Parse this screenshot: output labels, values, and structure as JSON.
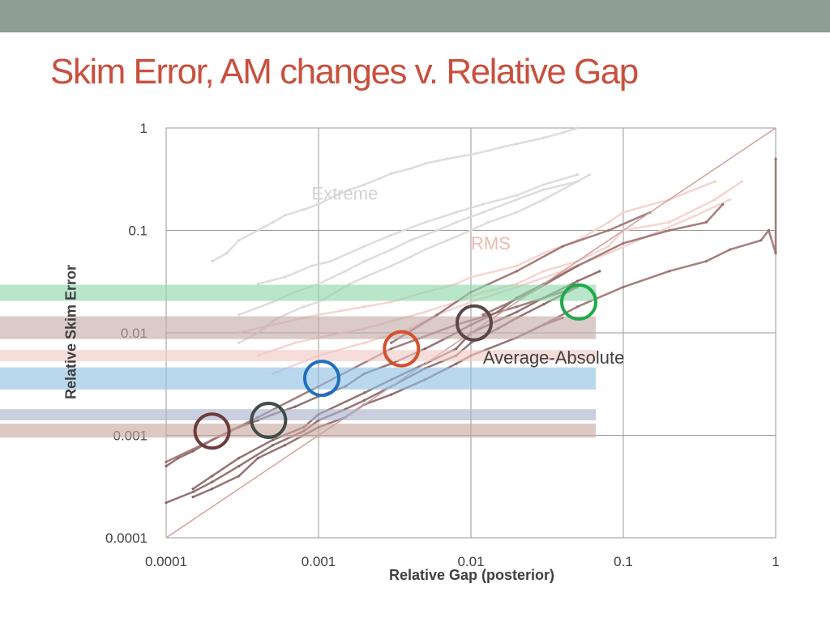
{
  "slide": {
    "title": "Skim Error, AM changes v. Relative Gap",
    "colors": {
      "header_bar": "#8f9e94",
      "title": "#c9503e"
    }
  },
  "chart_data": {
    "type": "scatter",
    "title": "",
    "xlabel": "Relative Gap (posterior)",
    "ylabel": "Relative Skim Error",
    "xscale": "log",
    "yscale": "log",
    "xlim": [
      0.0001,
      1
    ],
    "ylim": [
      0.0001,
      1
    ],
    "x_ticks": [
      0.0001,
      0.001,
      0.01,
      0.1,
      1
    ],
    "y_ticks": [
      0.0001,
      0.001,
      0.01,
      0.1,
      1
    ],
    "x_tick_labels": [
      "0.0001",
      "0.001",
      "0.01",
      "0.1",
      "1"
    ],
    "y_tick_labels": [
      "0.0001",
      "0.001",
      "0.01",
      "0.1",
      "1"
    ],
    "grid": true,
    "reference_line": {
      "from": [
        0.0001,
        0.0001
      ],
      "to": [
        1,
        1
      ],
      "color": "#d4a09a"
    },
    "annotations": [
      {
        "text": "Extreme",
        "x": 0.0009,
        "y": 0.2,
        "color": "#d3d3d3"
      },
      {
        "text": "RMS",
        "x": 0.01,
        "y": 0.065,
        "color": "#f0b8b0"
      },
      {
        "text": "Average-Absolute",
        "x": 0.012,
        "y": 0.005,
        "color": "#404040"
      }
    ],
    "series": [
      {
        "color": "#d9d9d9",
        "points": [
          [
            0.0002,
            0.05
          ],
          [
            0.00025,
            0.06
          ],
          [
            0.0003,
            0.08
          ],
          [
            0.0004,
            0.1
          ],
          [
            0.0005,
            0.12
          ],
          [
            0.0006,
            0.14
          ],
          [
            0.0008,
            0.16
          ],
          [
            0.001,
            0.18
          ],
          [
            0.0013,
            0.22
          ],
          [
            0.0016,
            0.25
          ],
          [
            0.002,
            0.28
          ],
          [
            0.0025,
            0.32
          ],
          [
            0.003,
            0.36
          ],
          [
            0.004,
            0.4
          ],
          [
            0.005,
            0.45
          ],
          [
            0.007,
            0.5
          ],
          [
            0.01,
            0.55
          ],
          [
            0.013,
            0.6
          ],
          [
            0.016,
            0.65
          ],
          [
            0.02,
            0.7
          ],
          [
            0.03,
            0.8
          ],
          [
            0.04,
            0.9
          ],
          [
            0.05,
            1.0
          ]
        ]
      },
      {
        "color": "#d9d9d9",
        "points": [
          [
            0.0003,
            0.008
          ],
          [
            0.0004,
            0.01
          ],
          [
            0.0005,
            0.013
          ],
          [
            0.0006,
            0.015
          ],
          [
            0.0008,
            0.018
          ],
          [
            0.001,
            0.02
          ],
          [
            0.0013,
            0.025
          ],
          [
            0.0016,
            0.03
          ],
          [
            0.002,
            0.035
          ],
          [
            0.003,
            0.045
          ],
          [
            0.004,
            0.055
          ],
          [
            0.005,
            0.065
          ],
          [
            0.007,
            0.08
          ],
          [
            0.01,
            0.1
          ],
          [
            0.013,
            0.12
          ],
          [
            0.02,
            0.15
          ],
          [
            0.03,
            0.2
          ],
          [
            0.05,
            0.3
          ]
        ]
      },
      {
        "color": "#d9d9d9",
        "points": [
          [
            0.0003,
            0.015
          ],
          [
            0.0005,
            0.02
          ],
          [
            0.0007,
            0.025
          ],
          [
            0.001,
            0.03
          ],
          [
            0.0015,
            0.04
          ],
          [
            0.002,
            0.05
          ],
          [
            0.003,
            0.065
          ],
          [
            0.004,
            0.08
          ],
          [
            0.006,
            0.1
          ],
          [
            0.008,
            0.12
          ],
          [
            0.012,
            0.15
          ],
          [
            0.02,
            0.2
          ],
          [
            0.03,
            0.25
          ],
          [
            0.05,
            0.3
          ],
          [
            0.06,
            0.35
          ]
        ]
      },
      {
        "color": "#d9d9d9",
        "points": [
          [
            0.0004,
            0.03
          ],
          [
            0.0006,
            0.035
          ],
          [
            0.0009,
            0.045
          ],
          [
            0.0012,
            0.05
          ],
          [
            0.002,
            0.07
          ],
          [
            0.003,
            0.09
          ],
          [
            0.005,
            0.12
          ],
          [
            0.008,
            0.15
          ],
          [
            0.012,
            0.18
          ],
          [
            0.02,
            0.22
          ],
          [
            0.03,
            0.28
          ],
          [
            0.05,
            0.35
          ]
        ]
      },
      {
        "color": "#f4d0cc",
        "points": [
          [
            0.0003,
            0.01
          ],
          [
            0.0005,
            0.012
          ],
          [
            0.0008,
            0.014
          ],
          [
            0.001,
            0.015
          ],
          [
            0.002,
            0.018
          ],
          [
            0.003,
            0.02
          ],
          [
            0.005,
            0.025
          ],
          [
            0.008,
            0.03
          ],
          [
            0.01,
            0.035
          ],
          [
            0.02,
            0.045
          ],
          [
            0.03,
            0.06
          ],
          [
            0.05,
            0.08
          ],
          [
            0.08,
            0.12
          ],
          [
            0.1,
            0.15
          ],
          [
            0.2,
            0.2
          ],
          [
            0.4,
            0.3
          ]
        ]
      },
      {
        "color": "#f4d0cc",
        "points": [
          [
            0.0004,
            0.006
          ],
          [
            0.0007,
            0.008
          ],
          [
            0.001,
            0.009
          ],
          [
            0.002,
            0.011
          ],
          [
            0.003,
            0.013
          ],
          [
            0.005,
            0.016
          ],
          [
            0.008,
            0.02
          ],
          [
            0.012,
            0.025
          ],
          [
            0.02,
            0.03
          ],
          [
            0.03,
            0.04
          ],
          [
            0.05,
            0.05
          ],
          [
            0.08,
            0.07
          ],
          [
            0.1,
            0.1
          ],
          [
            0.2,
            0.12
          ],
          [
            0.4,
            0.2
          ],
          [
            0.6,
            0.3
          ]
        ]
      },
      {
        "color": "#f4d0cc",
        "points": [
          [
            0.0005,
            0.004
          ],
          [
            0.001,
            0.006
          ],
          [
            0.002,
            0.008
          ],
          [
            0.004,
            0.011
          ],
          [
            0.006,
            0.015
          ],
          [
            0.01,
            0.02
          ],
          [
            0.02,
            0.028
          ],
          [
            0.04,
            0.04
          ],
          [
            0.08,
            0.06
          ],
          [
            0.15,
            0.09
          ],
          [
            0.3,
            0.14
          ],
          [
            0.5,
            0.2
          ]
        ]
      },
      {
        "color": "#8b6565",
        "points": [
          [
            0.0001,
            0.0005
          ],
          [
            0.00012,
            0.0006
          ],
          [
            0.00015,
            0.0007
          ],
          [
            0.0002,
            0.0009
          ],
          [
            0.0003,
            0.0012
          ],
          [
            0.0004,
            0.0014
          ],
          [
            0.0005,
            0.0016
          ],
          [
            0.0007,
            0.0019
          ],
          [
            0.001,
            0.0024
          ],
          [
            0.0015,
            0.003
          ],
          [
            0.002,
            0.004
          ],
          [
            0.003,
            0.005
          ],
          [
            0.005,
            0.007
          ],
          [
            0.007,
            0.009
          ],
          [
            0.01,
            0.012
          ],
          [
            0.015,
            0.016
          ],
          [
            0.02,
            0.022
          ],
          [
            0.03,
            0.03
          ],
          [
            0.05,
            0.045
          ]
        ]
      },
      {
        "color": "#8b6565",
        "points": [
          [
            0.0001,
            0.00022
          ],
          [
            0.00015,
            0.00028
          ],
          [
            0.0002,
            0.00035
          ],
          [
            0.0003,
            0.0005
          ],
          [
            0.0005,
            0.0008
          ],
          [
            0.0008,
            0.0011
          ],
          [
            0.001,
            0.0014
          ],
          [
            0.0015,
            0.0018
          ],
          [
            0.002,
            0.0022
          ],
          [
            0.003,
            0.003
          ],
          [
            0.005,
            0.0045
          ],
          [
            0.008,
            0.006
          ],
          [
            0.01,
            0.008
          ],
          [
            0.015,
            0.011
          ],
          [
            0.02,
            0.014
          ],
          [
            0.03,
            0.019
          ],
          [
            0.05,
            0.028
          ]
        ]
      },
      {
        "color": "#8b6565",
        "points": [
          [
            0.00015,
            0.0003
          ],
          [
            0.0002,
            0.0004
          ],
          [
            0.0003,
            0.0006
          ],
          [
            0.0005,
            0.0009
          ],
          [
            0.0008,
            0.0012
          ],
          [
            0.001,
            0.0016
          ],
          [
            0.002,
            0.0026
          ],
          [
            0.003,
            0.0035
          ],
          [
            0.005,
            0.005
          ],
          [
            0.008,
            0.007
          ],
          [
            0.01,
            0.01
          ],
          [
            0.02,
            0.016
          ],
          [
            0.03,
            0.022
          ],
          [
            0.05,
            0.032
          ],
          [
            0.07,
            0.04
          ]
        ]
      },
      {
        "color": "#8b6565",
        "points": [
          [
            0.00015,
            0.00025
          ],
          [
            0.0002,
            0.0003
          ],
          [
            0.0003,
            0.0004
          ],
          [
            0.0004,
            0.0006
          ],
          [
            0.0006,
            0.0008
          ],
          [
            0.001,
            0.0012
          ],
          [
            0.0015,
            0.0015
          ],
          [
            0.002,
            0.002
          ],
          [
            0.003,
            0.0025
          ],
          [
            0.005,
            0.0035
          ],
          [
            0.008,
            0.005
          ],
          [
            0.01,
            0.006
          ],
          [
            0.02,
            0.009
          ],
          [
            0.03,
            0.012
          ],
          [
            0.04,
            0.014
          ]
        ]
      },
      {
        "color": "#9b7070",
        "points": [
          [
            0.003,
            0.008
          ],
          [
            0.006,
            0.015
          ],
          [
            0.01,
            0.025
          ],
          [
            0.02,
            0.04
          ],
          [
            0.04,
            0.07
          ],
          [
            0.08,
            0.1
          ],
          [
            0.15,
            0.15
          ]
        ]
      },
      {
        "color": "#9b7070",
        "points": [
          [
            0.012,
            0.015
          ],
          [
            0.025,
            0.025
          ],
          [
            0.05,
            0.045
          ],
          [
            0.1,
            0.075
          ],
          [
            0.2,
            0.1
          ],
          [
            0.35,
            0.12
          ],
          [
            0.45,
            0.18
          ]
        ]
      },
      {
        "color": "#9b7070",
        "points": [
          [
            0.03,
            0.012
          ],
          [
            0.05,
            0.018
          ],
          [
            0.1,
            0.028
          ],
          [
            0.2,
            0.04
          ],
          [
            0.35,
            0.05
          ],
          [
            0.5,
            0.065
          ],
          [
            0.8,
            0.08
          ],
          [
            0.9,
            0.1
          ],
          [
            1.0,
            0.06
          ],
          [
            1.0,
            0.5
          ]
        ]
      },
      {
        "color": "#9b7070",
        "points": [
          [
            0.0001,
            0.00055
          ],
          [
            0.0002,
            0.0009
          ],
          [
            0.0004,
            0.0015
          ],
          [
            0.001,
            0.003
          ],
          [
            0.003,
            0.007
          ],
          [
            0.008,
            0.012
          ],
          [
            0.02,
            0.018
          ],
          [
            0.05,
            0.028
          ]
        ]
      }
    ],
    "highlight_bands": [
      {
        "y_range": [
          0.0205,
          0.0295
        ],
        "color": "#8ed7a8"
      },
      {
        "y_range": [
          0.0087,
          0.0145
        ],
        "color": "#c4aaa6"
      },
      {
        "y_range": [
          0.0053,
          0.0068
        ],
        "color": "#f2c8c2"
      },
      {
        "y_range": [
          0.0028,
          0.0046
        ],
        "color": "#8ec0e3"
      },
      {
        "y_range": [
          0.0014,
          0.0018
        ],
        "color": "#a8b2cc"
      },
      {
        "y_range": [
          0.00095,
          0.0013
        ],
        "color": "#c8a6a0"
      }
    ],
    "highlight_markers": [
      {
        "x": 0.0002,
        "y": 0.0011,
        "color": "#6e3b3b"
      },
      {
        "x": 0.00047,
        "y": 0.0014,
        "color": "#3f4d45"
      },
      {
        "x": 0.00105,
        "y": 0.0036,
        "color": "#1f6fbf"
      },
      {
        "x": 0.0035,
        "y": 0.007,
        "color": "#d5502f"
      },
      {
        "x": 0.0105,
        "y": 0.0125,
        "color": "#5a4848"
      },
      {
        "x": 0.051,
        "y": 0.02,
        "color": "#1faa4a"
      }
    ]
  }
}
